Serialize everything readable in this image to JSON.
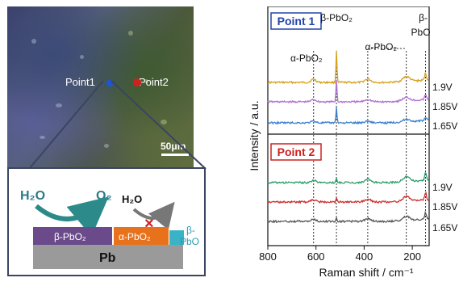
{
  "micrograph": {
    "point1_label": "Point1",
    "point2_label": "Point2",
    "scale_bar": "50μm"
  },
  "schematic": {
    "h2o_left": "H₂O",
    "o2": "O₂",
    "h2o_right": "H₂O",
    "beta_pbo2": "β-PbO₂",
    "alpha_pbo2": "α-PbO₂",
    "beta_pbo_line1": "β-",
    "beta_pbo_line2": "PbO",
    "pb": "Pb",
    "colors": {
      "beta_block": "#6a4a8a",
      "alpha_block": "#e8721c",
      "pbo_block": "#3ab3c6",
      "pb_block": "#9a9a9a",
      "arrow": "#2c8a8a"
    }
  },
  "chart_data": {
    "type": "line",
    "xlabel": "Raman shift / cm⁻¹",
    "ylabel": "Intensity / a.u.",
    "x_ticks": [
      800,
      600,
      400,
      200
    ],
    "xlim": [
      800,
      130
    ],
    "panels": [
      {
        "title": "Point 1",
        "title_color": "#2244aa",
        "series": [
          {
            "name": "1.9V",
            "color": "#d6a21e"
          },
          {
            "name": "1.85V",
            "color": "#b070d0"
          },
          {
            "name": "1.65V",
            "color": "#3a7fd0"
          }
        ]
      },
      {
        "title": "Point 2",
        "title_color": "#cc2222",
        "series": [
          {
            "name": "1.9V",
            "color": "#2e9e6a"
          },
          {
            "name": "1.85V",
            "color": "#d03030"
          },
          {
            "name": "1.65V",
            "color": "#555555"
          }
        ]
      }
    ],
    "annotations": [
      "α-PbO₂",
      "β-PbO₂",
      "α-PbO₂",
      "β-PbO"
    ],
    "annotation_line2": "PbO",
    "annotation_beta": "β-",
    "reference_lines_x": [
      610,
      515,
      385,
      225,
      145
    ]
  }
}
